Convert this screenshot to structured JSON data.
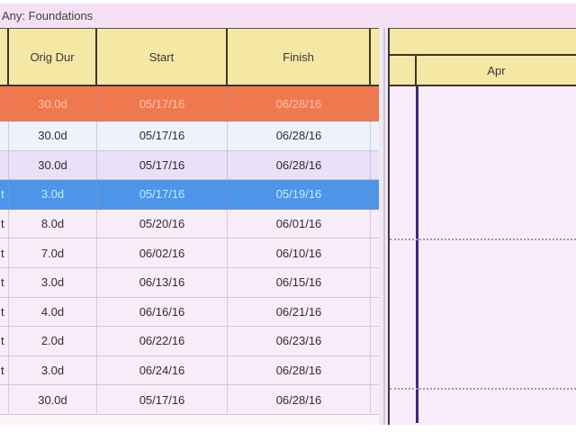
{
  "window": {
    "group_label": "Any: Foundations"
  },
  "table": {
    "columns": [
      {
        "label": "Orig Dur"
      },
      {
        "label": "Start"
      },
      {
        "label": "Finish"
      }
    ],
    "rows": [
      {
        "left": "",
        "dur": "30.0d",
        "start": "05/17/16",
        "finish": "06/28/16",
        "state": "orange"
      },
      {
        "left": "",
        "dur": "30.0d",
        "start": "05/17/16",
        "finish": "06/28/16",
        "state": "bluewhite"
      },
      {
        "left": "",
        "dur": "30.0d",
        "start": "05/17/16",
        "finish": "06/28/16",
        "state": "lavender"
      },
      {
        "left": "t",
        "dur": "3.0d",
        "start": "05/17/16",
        "finish": "05/19/16",
        "state": "selected"
      },
      {
        "left": "t",
        "dur": "8.0d",
        "start": "05/20/16",
        "finish": "06/01/16",
        "state": "pink"
      },
      {
        "left": "t",
        "dur": "7.0d",
        "start": "06/02/16",
        "finish": "06/10/16",
        "state": "pink"
      },
      {
        "left": "t",
        "dur": "3.0d",
        "start": "06/13/16",
        "finish": "06/15/16",
        "state": "pink"
      },
      {
        "left": "t",
        "dur": "4.0d",
        "start": "06/16/16",
        "finish": "06/21/16",
        "state": "pink"
      },
      {
        "left": "t",
        "dur": "2.0d",
        "start": "06/22/16",
        "finish": "06/23/16",
        "state": "pink"
      },
      {
        "left": "t",
        "dur": "3.0d",
        "start": "06/24/16",
        "finish": "06/28/16",
        "state": "pink"
      },
      {
        "left": "",
        "dur": "30.0d",
        "start": "05/17/16",
        "finish": "06/28/16",
        "state": "pink"
      }
    ]
  },
  "gantt": {
    "timescale": {
      "month_label": "Apr"
    }
  },
  "colors": {
    "header_fill": "#f5e7a4",
    "band_fill": "#f5e1f3",
    "row_orange": "#f0784e",
    "row_orange_text": "#f8c5ac",
    "row_selected": "#4d95e8",
    "row_selected_text": "#c6ecfc",
    "row_alt_blue": "#edf2fc",
    "row_alt_lavender": "#e8e1f8",
    "row_pink": "#f9ecf9",
    "gantt_bg": "#f8ebfa",
    "data_date_line": "#37297a",
    "text_dark": "#2e2e2e"
  }
}
